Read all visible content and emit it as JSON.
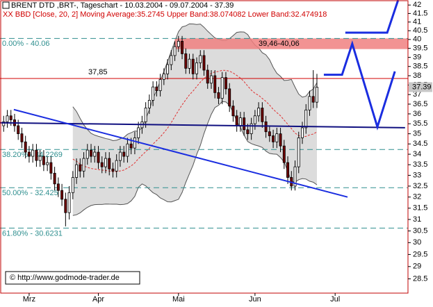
{
  "chart_data": {
    "type": "candlestick",
    "title": "BRENT DTD ,BRT-, Tageschart - 10.03.2004 - 09.07.2004 - 37.39",
    "indicator": {
      "label": "XX BBD [Close, 20, 2] Moving Average:35.2745 Upper Band:38.074082 Lower Band:32.474918",
      "period": 20,
      "deviations": 2
    },
    "source": "© http://www.godmode-trader.de",
    "log_y": true,
    "ylim": [
      27.93,
      42.3
    ],
    "yticks": [
      28.5,
      29,
      29.5,
      30,
      30.5,
      31,
      31.5,
      32,
      32.5,
      33,
      33.5,
      34,
      34.5,
      35,
      35.5,
      36,
      36.5,
      37,
      37.5,
      38,
      38.5,
      39,
      39.5,
      40,
      40.5,
      41,
      41.5,
      42
    ],
    "xlim": [
      -1,
      111
    ],
    "xticks": [
      {
        "value": 7,
        "label": "Mrz"
      },
      {
        "value": 26,
        "label": "Apr"
      },
      {
        "value": 48,
        "label": "Mai"
      },
      {
        "value": 69,
        "label": "Jun"
      },
      {
        "value": 91,
        "label": "Jul"
      }
    ],
    "open": [
      35.4,
      35.6,
      35.9,
      35.7,
      35.4,
      35.0,
      34.6,
      34.1,
      33.9,
      34.2,
      33.7,
      33.9,
      33.5,
      33.6,
      33.1,
      32.6,
      32.3,
      31.9,
      31.3,
      32.2,
      32.9,
      33.5,
      33.2,
      33.8,
      34.2,
      33.9,
      34.1,
      33.6,
      33.4,
      33.8,
      33.3,
      33.2,
      33.7,
      34.1,
      33.9,
      34.5,
      34.3,
      34.8,
      35.3,
      35.6,
      36.3,
      36.7,
      37.4,
      37.2,
      37.8,
      38.1,
      38.6,
      39.1,
      39.6,
      39.9,
      39.2,
      38.4,
      38.9,
      38.1,
      38.7,
      39.1,
      38.3,
      37.6,
      38.0,
      37.1,
      36.8,
      37.9,
      37.3,
      36.4,
      35.9,
      35.4,
      35.8,
      35.2,
      35.0,
      35.5,
      35.9,
      36.3,
      35.6,
      35.1,
      34.9,
      34.6,
      35.0,
      34.4,
      33.6,
      32.9,
      32.5,
      33.4,
      34.8,
      35.3,
      36.2,
      36.9,
      36.6
    ],
    "high": [
      35.9,
      36.2,
      36.2,
      36.0,
      35.7,
      35.3,
      34.9,
      34.4,
      34.5,
      34.5,
      34.2,
      34.2,
      33.9,
      33.9,
      33.4,
      32.9,
      32.6,
      32.2,
      32.5,
      33.2,
      33.8,
      33.8,
      34.1,
      34.5,
      34.5,
      34.4,
      34.4,
      33.9,
      34.1,
      34.1,
      33.6,
      34.0,
      34.4,
      34.4,
      34.8,
      34.8,
      35.1,
      35.6,
      35.9,
      36.6,
      37.0,
      37.7,
      37.7,
      38.1,
      38.4,
      38.9,
      39.4,
      39.9,
      40.2,
      40.2,
      39.5,
      39.2,
      39.2,
      39.0,
      39.4,
      39.4,
      38.6,
      38.3,
      38.3,
      37.4,
      38.2,
      38.2,
      37.6,
      36.7,
      36.2,
      36.1,
      36.1,
      35.5,
      35.8,
      36.2,
      36.6,
      36.6,
      35.9,
      35.4,
      35.2,
      35.3,
      35.3,
      34.7,
      33.9,
      33.2,
      33.7,
      35.1,
      35.6,
      36.5,
      37.2,
      38.3,
      38.1
    ],
    "low": [
      35.1,
      35.3,
      35.4,
      35.1,
      34.7,
      34.3,
      33.8,
      33.6,
      33.6,
      33.4,
      33.4,
      33.2,
      33.2,
      32.8,
      32.3,
      32.0,
      31.6,
      30.7,
      31.0,
      31.9,
      32.6,
      32.9,
      32.9,
      33.5,
      33.6,
      33.6,
      33.3,
      33.1,
      33.1,
      33.0,
      32.9,
      32.9,
      33.4,
      33.6,
      33.6,
      34.0,
      34.0,
      34.5,
      35.0,
      35.3,
      36.0,
      36.4,
      36.9,
      36.9,
      37.5,
      37.8,
      38.3,
      38.8,
      39.3,
      38.9,
      38.1,
      38.1,
      37.8,
      37.8,
      38.4,
      38.0,
      37.3,
      37.3,
      36.8,
      36.5,
      36.5,
      37.0,
      36.1,
      35.6,
      35.1,
      35.1,
      34.9,
      34.7,
      34.7,
      35.2,
      35.6,
      35.3,
      34.8,
      34.6,
      34.3,
      34.3,
      34.1,
      33.3,
      32.6,
      32.3,
      32.3,
      33.1,
      34.5,
      35.0,
      35.9,
      36.3,
      36.3
    ],
    "close": [
      35.6,
      35.9,
      35.7,
      35.4,
      35.0,
      34.6,
      34.1,
      33.9,
      34.2,
      33.7,
      33.9,
      33.5,
      33.6,
      33.1,
      32.6,
      32.3,
      31.9,
      31.3,
      32.2,
      32.9,
      33.5,
      33.2,
      33.8,
      34.2,
      33.9,
      34.1,
      33.6,
      33.4,
      33.8,
      33.3,
      33.2,
      33.7,
      34.1,
      33.9,
      34.5,
      34.3,
      34.8,
      35.3,
      35.6,
      36.3,
      36.7,
      37.4,
      37.2,
      37.8,
      38.1,
      38.6,
      39.1,
      39.6,
      39.9,
      39.2,
      38.4,
      38.9,
      38.1,
      38.7,
      39.1,
      38.3,
      37.6,
      38.0,
      37.1,
      36.8,
      37.9,
      37.3,
      36.4,
      35.9,
      35.4,
      35.8,
      35.2,
      35.0,
      35.5,
      35.9,
      36.3,
      35.6,
      35.1,
      34.9,
      34.6,
      35.0,
      34.4,
      33.6,
      32.9,
      32.5,
      33.4,
      34.8,
      35.3,
      36.2,
      36.9,
      36.6,
      37.39
    ],
    "fib_levels": [
      {
        "value": 40.06,
        "label": "0.00% - 40.06"
      },
      {
        "value": 34.2269,
        "label": "38.20% - 34.2269"
      },
      {
        "value": 32.425,
        "label": "50.00% - 32.425"
      },
      {
        "value": 30.6231,
        "label": "61.80% - 30.6231"
      }
    ],
    "resistance_zone": {
      "low": 39.46,
      "high": 40.06,
      "label": "39,46-40,06"
    },
    "level_line": {
      "value": 37.85,
      "label": "37,85"
    },
    "drawings": [
      {
        "x": [
          -1,
          110.2
        ],
        "y": [
          35.55,
          35.3
        ]
      },
      {
        "x": [
          2.8,
          94.4
        ],
        "y": [
          36.22,
          32.0
        ]
      },
      {
        "x": [
          87.9,
          92.9,
          95.7,
          102.6,
          107.4
        ],
        "y": [
          38.05,
          38.05,
          39.76,
          35.34,
          38.23
        ]
      },
      {
        "x": [
          93.8,
          105.3,
          108.3
        ],
        "y": [
          40.39,
          40.39,
          42.3
        ]
      }
    ]
  }
}
